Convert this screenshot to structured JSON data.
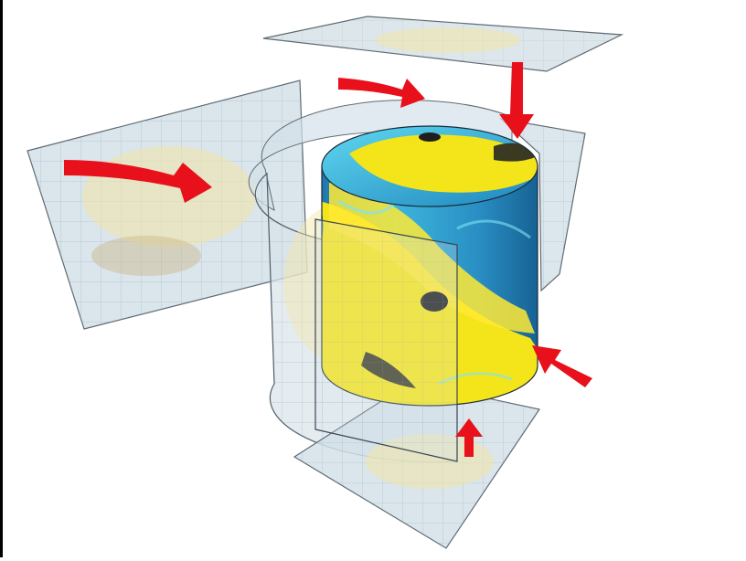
{
  "colors": {
    "background": "#ffffff",
    "frame": "#000000",
    "panel_fill": "#c9dbe6",
    "panel_grid": "#8fa7b6",
    "panel_edge": "#4f5d66",
    "arrow": "#e8101a",
    "water_dark": "#1a6fa6",
    "water_light": "#4fd1ee",
    "fish_yellow": "#f4e51a",
    "fish_shadow": "#3a3a22",
    "ghost_fish": "#f3e6a6"
  },
  "icons": {
    "arrows": "red-projection-arrow",
    "cylinder": "fish-texture-cylinder",
    "panels": "grid-projection-plane"
  }
}
